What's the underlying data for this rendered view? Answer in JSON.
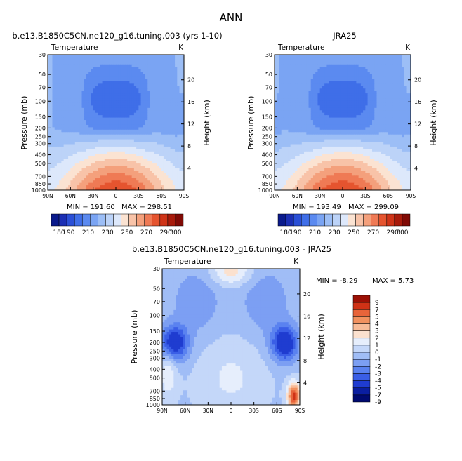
{
  "figure_title": "ANN",
  "chart_data": [
    {
      "type": "heatmap",
      "title": "b.e13.B1850C5CN.ne120_g16.tuning.003 (yrs 1-10)",
      "subtitle": "Temperature",
      "units": "K",
      "ylabel": "Pressure (mb)",
      "y2label": "Height (km)",
      "x_ticks": [
        "90N",
        "60N",
        "30N",
        "0",
        "30S",
        "60S",
        "90S"
      ],
      "pressure_ticks": [
        "30",
        "50",
        "70",
        "100",
        "150",
        "200",
        "250",
        "300",
        "400",
        "500",
        "700",
        "850",
        "1000"
      ],
      "height_ticks": [
        "4",
        "8",
        "12",
        "16",
        "20"
      ],
      "min_label": "MIN = 191.60",
      "max_label": "MAX = 298.51",
      "colorbar": {
        "orientation": "horizontal",
        "levels": [
          "180",
          "190",
          "200",
          "210",
          "220",
          "230",
          "240",
          "250",
          "260",
          "270",
          "280",
          "290",
          "300"
        ],
        "labels": [
          "180",
          "190",
          "210",
          "230",
          "250",
          "270",
          "290",
          "300"
        ]
      },
      "field": "model"
    },
    {
      "type": "heatmap",
      "title": "JRA25",
      "subtitle": "Temperature",
      "units": "K",
      "ylabel": "Pressure (mb)",
      "y2label": "Height (km)",
      "x_ticks": [
        "90N",
        "60N",
        "30N",
        "0",
        "30S",
        "60S",
        "90S"
      ],
      "pressure_ticks": [
        "30",
        "50",
        "70",
        "100",
        "150",
        "200",
        "250",
        "300",
        "400",
        "500",
        "700",
        "850",
        "1000"
      ],
      "height_ticks": [
        "4",
        "8",
        "12",
        "16",
        "20"
      ],
      "min_label": "MIN = 193.49",
      "max_label": "MAX = 299.09",
      "colorbar": {
        "orientation": "horizontal",
        "levels": [
          "180",
          "190",
          "200",
          "210",
          "220",
          "230",
          "240",
          "250",
          "260",
          "270",
          "280",
          "290",
          "300"
        ],
        "labels": [
          "180",
          "190",
          "210",
          "230",
          "250",
          "270",
          "290",
          "300"
        ]
      },
      "field": "obs"
    },
    {
      "type": "heatmap",
      "title": "b.e13.B1850C5CN.ne120_g16.tuning.003 - JRA25",
      "subtitle": "Temperature",
      "units": "K",
      "ylabel": "Pressure (mb)",
      "y2label": "Height (km)",
      "x_ticks": [
        "90N",
        "60N",
        "30N",
        "0",
        "30S",
        "60S",
        "90S"
      ],
      "pressure_ticks": [
        "30",
        "50",
        "70",
        "100",
        "150",
        "200",
        "250",
        "300",
        "400",
        "500",
        "700",
        "850",
        "1000"
      ],
      "height_ticks": [
        "4",
        "8",
        "12",
        "16",
        "20"
      ],
      "min_label": "MIN =   -8.29",
      "max_label": "MAX =    5.73",
      "colorbar": {
        "orientation": "vertical",
        "levels": [
          "9",
          "7",
          "5",
          "4",
          "3",
          "2",
          "1",
          "0",
          "-1",
          "-2",
          "-3",
          "-4",
          "-5",
          "-7",
          "-9"
        ]
      },
      "field": "diff"
    }
  ],
  "palettes": {
    "absolute": [
      "#0a1a8c",
      "#1b2fb4",
      "#2a4fd6",
      "#3f6ee8",
      "#5b8af0",
      "#7aa4f3",
      "#9cbef6",
      "#bcd3f8",
      "#dde8fb",
      "#fbe3d2",
      "#f8c3a8",
      "#f4a07c",
      "#ef7a55",
      "#e5542f",
      "#cf3418",
      "#a81b0b",
      "#800a05"
    ],
    "difference": [
      "#000a70",
      "#0a1ea0",
      "#1f3cd0",
      "#3a5ee6",
      "#5a82f0",
      "#7c9ff3",
      "#a0bdf6",
      "#c4d7f9",
      "#e6eefc",
      "#fbe1cf",
      "#f7bb98",
      "#f1915f",
      "#e8643a",
      "#cf3216",
      "#9c1005"
    ]
  }
}
